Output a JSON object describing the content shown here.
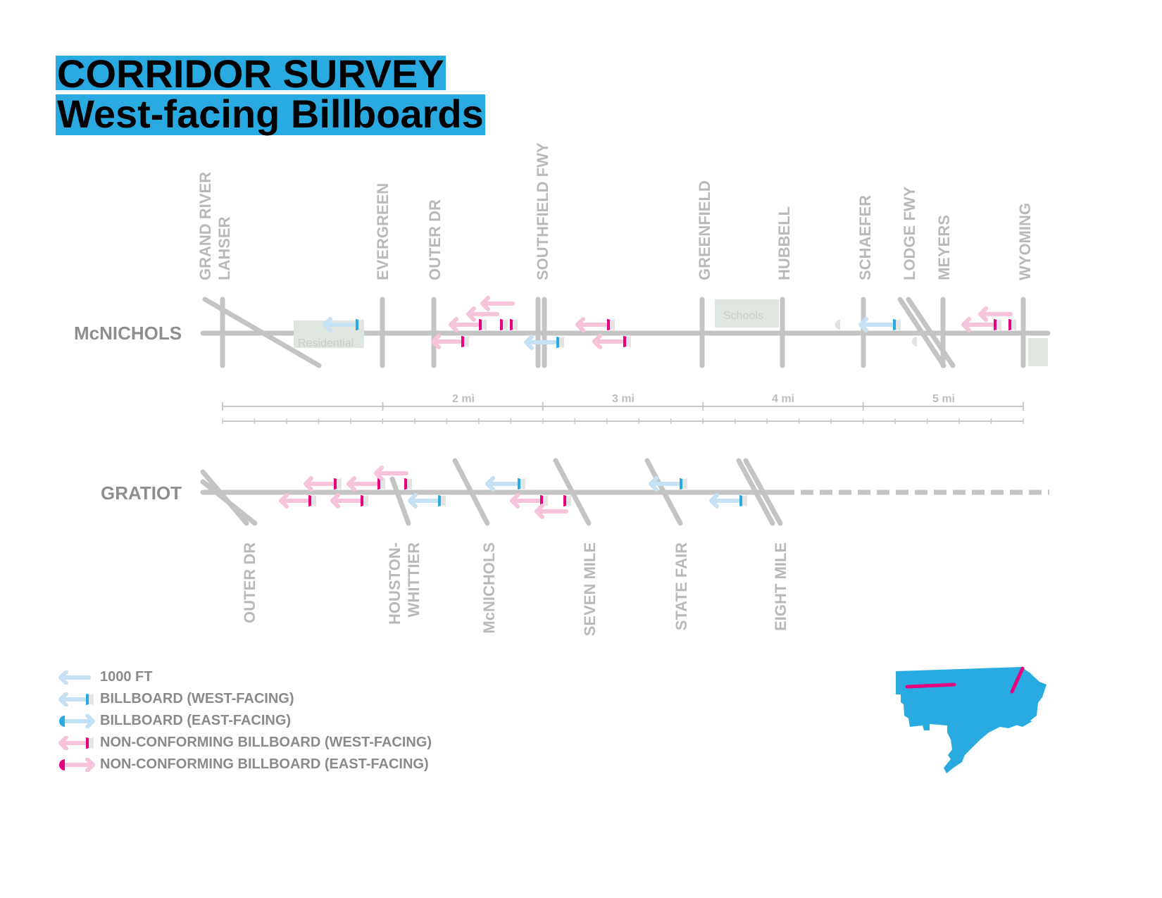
{
  "title": {
    "line1": "CORRIDOR SURVEY",
    "line2": "West-facing Billboards"
  },
  "colors": {
    "accent": "#29abe2",
    "nonconforming": "#e6007e",
    "pale_blue": "#c6e1f3",
    "pale_pink": "#f6c3da",
    "road": "#c4c4c4",
    "zone": "#dfe5df"
  },
  "mcnichols": {
    "name": "McNICHOLS",
    "cross_streets": [
      "GRAND RIVER",
      "LAHSER",
      "EVERGREEN",
      "OUTER DR",
      "SOUTHFIELD FWY",
      "GREENFIELD",
      "HUBBELL",
      "SCHAEFER",
      "LODGE FWY",
      "MEYERS",
      "WYOMING"
    ],
    "zones": {
      "residential": "Residential",
      "schools": "Schools"
    }
  },
  "scale": {
    "labels": [
      "2 mi",
      "3 mi",
      "4 mi",
      "5 mi"
    ]
  },
  "gratiot": {
    "name": "GRATIOT",
    "cross_streets": [
      "OUTER DR",
      "HOUSTON-",
      "WHITTIER",
      "McNICHOLS",
      "SEVEN MILE",
      "STATE FAIR",
      "EIGHT MILE"
    ]
  },
  "legend": [
    {
      "icon": "arrow-1000ft",
      "label": "1000 FT"
    },
    {
      "icon": "billboard-west",
      "label": "BILLBOARD (WEST-FACING)"
    },
    {
      "icon": "billboard-east",
      "label": "BILLBOARD (EAST-FACING)"
    },
    {
      "icon": "nonconforming-west",
      "label": "NON-CONFORMING BILLBOARD (WEST-FACING)"
    },
    {
      "icon": "nonconforming-east",
      "label": "NON-CONFORMING BILLBOARD (EAST-FACING)"
    }
  ]
}
